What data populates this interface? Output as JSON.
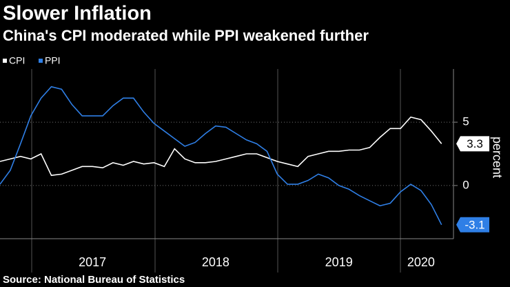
{
  "chart_data": {
    "type": "line",
    "title": "Slower Inflation",
    "subtitle": "China's CPI moderated while PPI weakened further",
    "y_label": "percent",
    "source": "Source: National Bureau of Statistics",
    "categories": [
      null,
      null,
      null,
      null,
      null,
      null,
      null,
      null,
      null,
      "2017",
      null,
      null,
      null,
      null,
      null,
      null,
      null,
      null,
      null,
      null,
      null,
      "2018",
      null,
      null,
      null,
      null,
      null,
      null,
      null,
      null,
      null,
      null,
      null,
      "2019",
      null,
      null,
      null,
      null,
      null,
      null,
      null,
      "2020",
      null,
      null
    ],
    "series": [
      {
        "name": "CPI",
        "color": "#ffffff",
        "values": [
          1.9,
          2.1,
          2.3,
          2.1,
          2.5,
          0.8,
          0.9,
          1.2,
          1.5,
          1.5,
          1.4,
          1.8,
          1.6,
          1.9,
          1.7,
          1.8,
          1.5,
          2.9,
          2.1,
          1.8,
          1.8,
          1.9,
          2.1,
          2.3,
          2.5,
          2.5,
          2.2,
          1.9,
          1.7,
          1.5,
          2.3,
          2.5,
          2.7,
          2.7,
          2.8,
          2.8,
          3.0,
          3.8,
          4.5,
          4.5,
          5.4,
          5.2,
          4.3,
          3.3
        ]
      },
      {
        "name": "PPI",
        "color": "#2f7fe6",
        "values": [
          0.1,
          1.2,
          3.3,
          5.5,
          6.9,
          7.8,
          7.6,
          6.4,
          5.5,
          5.5,
          5.5,
          6.3,
          6.9,
          6.9,
          5.8,
          4.9,
          4.3,
          3.7,
          3.1,
          3.4,
          4.1,
          4.7,
          4.6,
          4.1,
          3.6,
          3.3,
          2.7,
          0.9,
          0.1,
          0.1,
          0.4,
          0.9,
          0.6,
          0.0,
          -0.3,
          -0.8,
          -1.2,
          -1.6,
          -1.4,
          -0.5,
          0.1,
          -0.4,
          -1.5,
          -3.1
        ]
      }
    ],
    "ylim": [
      -4.2,
      9.2
    ],
    "yticks": [
      0,
      5
    ],
    "grid": true
  }
}
